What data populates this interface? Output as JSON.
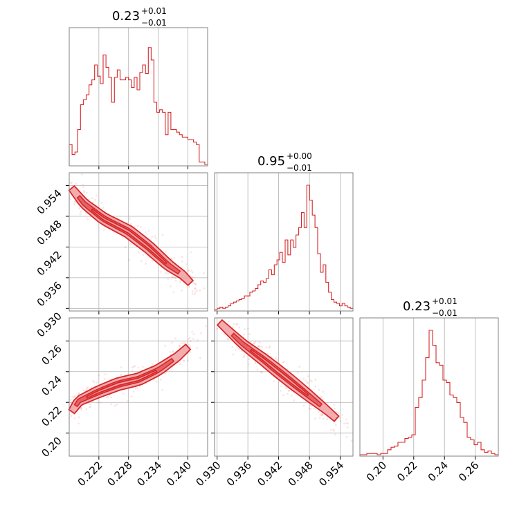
{
  "chart_data": {
    "type": "corner",
    "params": [
      {
        "title_main": "0.23",
        "title_plus": "+0.01",
        "title_minus": "−0.01",
        "lim": [
          0.216,
          0.244
        ],
        "ticks": [
          0.222,
          0.228,
          0.234,
          0.24
        ],
        "tick_labels": [
          "0.222",
          "0.228",
          "0.234",
          "0.240"
        ]
      },
      {
        "title_main": "0.95",
        "title_plus": "+0.00",
        "title_minus": "−0.01",
        "lim": [
          0.9295,
          0.9565
        ],
        "ticks": [
          0.93,
          0.936,
          0.942,
          0.948,
          0.954
        ],
        "tick_labels": [
          "0.930",
          "0.936",
          "0.942",
          "0.948",
          "0.954"
        ]
      },
      {
        "title_main": "0.23",
        "title_plus": "+0.01",
        "title_minus": "−0.01",
        "lim": [
          0.185,
          0.275
        ],
        "ticks": [
          0.2,
          0.22,
          0.24,
          0.26
        ],
        "tick_labels": [
          "0.20",
          "0.22",
          "0.24",
          "0.26"
        ]
      }
    ],
    "histograms": [
      {
        "param": 0,
        "counts": [
          0.16,
          0.08,
          0.1,
          0.28,
          0.48,
          0.52,
          0.56,
          0.64,
          0.68,
          0.8,
          0.71,
          0.65,
          0.88,
          0.78,
          0.7,
          0.5,
          0.7,
          0.76,
          0.68,
          0.68,
          0.7,
          0.68,
          0.62,
          0.7,
          0.6,
          0.74,
          0.8,
          0.73,
          0.94,
          0.84,
          0.5,
          0.42,
          0.44,
          0.42,
          0.24,
          0.42,
          0.28,
          0.28,
          0.26,
          0.24,
          0.22,
          0.22,
          0.2,
          0.2,
          0.18,
          0.16,
          0.02,
          0.02,
          0.0
        ]
      },
      {
        "param": 1,
        "counts": [
          0.0,
          0.01,
          0.02,
          0.01,
          0.02,
          0.03,
          0.05,
          0.06,
          0.07,
          0.08,
          0.09,
          0.11,
          0.11,
          0.14,
          0.15,
          0.17,
          0.2,
          0.23,
          0.22,
          0.25,
          0.32,
          0.28,
          0.36,
          0.4,
          0.46,
          0.38,
          0.56,
          0.44,
          0.56,
          0.5,
          0.6,
          0.66,
          0.78,
          0.66,
          1.0,
          0.88,
          0.76,
          0.66,
          0.45,
          0.3,
          0.36,
          0.22,
          0.14,
          0.08,
          0.06,
          0.05,
          0.03,
          0.05,
          0.03,
          0.02,
          0.01
        ]
      },
      {
        "param": 2,
        "counts": [
          0.0,
          0.0,
          0.01,
          0.01,
          0.01,
          0.0,
          0.01,
          0.01,
          0.04,
          0.06,
          0.07,
          0.1,
          0.1,
          0.13,
          0.14,
          0.16,
          0.38,
          0.46,
          0.6,
          0.78,
          1.0,
          0.88,
          0.74,
          0.72,
          0.6,
          0.58,
          0.48,
          0.46,
          0.42,
          0.3,
          0.26,
          0.14,
          0.12,
          0.08,
          0.1,
          0.04,
          0.02,
          0.03,
          0.01,
          0.0
        ]
      }
    ],
    "pairs": [
      {
        "x_param": 0,
        "y_param": 1,
        "relation": "negative",
        "ridge": [
          [
            0.2165,
            0.9535
          ],
          [
            0.219,
            0.9505
          ],
          [
            0.223,
            0.9475
          ],
          [
            0.228,
            0.945
          ],
          [
            0.232,
            0.942
          ],
          [
            0.236,
            0.9385
          ],
          [
            0.239,
            0.9365
          ],
          [
            0.242,
            0.9335
          ]
        ]
      },
      {
        "x_param": 0,
        "y_param": 2,
        "relation": "positive",
        "ridge": [
          [
            0.2165,
            0.214
          ],
          [
            0.218,
            0.221
          ],
          [
            0.222,
            0.227
          ],
          [
            0.226,
            0.232
          ],
          [
            0.23,
            0.235
          ],
          [
            0.234,
            0.241
          ],
          [
            0.238,
            0.25
          ],
          [
            0.242,
            0.262
          ]
        ]
      },
      {
        "x_param": 1,
        "y_param": 2,
        "relation": "negative",
        "ridge": [
          [
            0.9305,
            0.272
          ],
          [
            0.935,
            0.258
          ],
          [
            0.939,
            0.248
          ],
          [
            0.942,
            0.24
          ],
          [
            0.945,
            0.232
          ],
          [
            0.948,
            0.224
          ],
          [
            0.951,
            0.216
          ],
          [
            0.9555,
            0.203
          ]
        ]
      }
    ],
    "grid": true,
    "color": "#d62728"
  }
}
